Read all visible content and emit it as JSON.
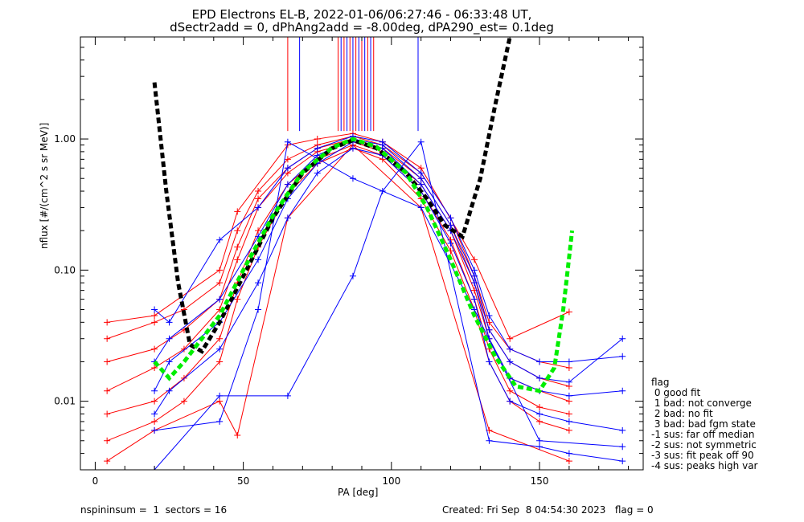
{
  "title_line1": "EPD Electrons EL-B, 2022-01-06/06:27:46 - 06:33:48 UT,",
  "title_line2": "dSectr2add = 0, dPhAng2add = -8.00deg, dPA290_est=   0.1deg",
  "footer_left": "nspininsum =  1  sectors = 16",
  "footer_right": "Created: Fri Sep  8 04:54:30 2023   flag = 0",
  "legend": {
    "title": "flag",
    "items": [
      " 0 good fit",
      " 1 bad: not converge",
      " 2 bad: no fit",
      " 3 bad: bad fgm state",
      "-1 sus: far off median",
      "-2 sus: not symmetric",
      "-3 sus: fit peak off 90",
      "-4 sus: peaks high var"
    ]
  },
  "colors": {
    "red": "#ff0000",
    "blue": "#0000ff",
    "black_fit": "#000000",
    "green_fit": "#00ee00"
  },
  "chart_data": {
    "type": "line",
    "xlabel": "PA [deg]",
    "ylabel": "nflux [#/(cm^2 s sr MeV)]",
    "xlim": [
      -5,
      185
    ],
    "ylim": [
      0.003,
      6
    ],
    "yscale": "log",
    "xticks": [
      0,
      50,
      100,
      150
    ],
    "yticks": [
      0.01,
      0.1,
      1.0
    ],
    "ytick_labels": [
      "0.01",
      "0.10",
      "1.00"
    ],
    "series": [
      {
        "color": "red",
        "x": [
          4,
          20,
          30,
          42,
          48,
          55,
          65,
          75,
          87,
          97,
          110,
          120,
          128,
          133,
          140,
          150,
          160
        ],
        "y": [
          0.012,
          0.018,
          0.025,
          0.05,
          0.12,
          0.3,
          0.55,
          0.8,
          0.95,
          0.8,
          0.45,
          0.2,
          0.07,
          0.03,
          0.015,
          0.012,
          0.01
        ]
      },
      {
        "color": "red",
        "x": [
          4,
          20,
          30,
          42,
          48,
          55,
          65,
          75,
          87,
          97,
          110,
          120,
          128,
          133,
          140,
          150,
          160
        ],
        "y": [
          0.02,
          0.025,
          0.035,
          0.06,
          0.15,
          0.35,
          0.6,
          0.85,
          1.0,
          0.85,
          0.5,
          0.22,
          0.08,
          0.035,
          0.02,
          0.015,
          0.013
        ]
      },
      {
        "color": "red",
        "x": [
          4,
          20,
          30,
          42,
          48,
          55,
          65,
          75,
          87,
          97,
          110,
          120,
          128,
          133,
          140,
          150,
          160
        ],
        "y": [
          0.008,
          0.01,
          0.015,
          0.03,
          0.08,
          0.2,
          0.45,
          0.7,
          0.9,
          0.75,
          0.4,
          0.17,
          0.06,
          0.025,
          0.012,
          0.009,
          0.008
        ]
      },
      {
        "color": "red",
        "x": [
          4,
          20,
          30,
          42,
          48,
          55,
          65,
          75,
          87,
          97,
          110,
          120,
          128,
          133,
          140,
          150,
          160
        ],
        "y": [
          0.03,
          0.04,
          0.05,
          0.08,
          0.2,
          0.4,
          0.7,
          0.9,
          1.05,
          0.9,
          0.55,
          0.25,
          0.09,
          0.04,
          0.025,
          0.02,
          0.018
        ]
      },
      {
        "color": "red",
        "x": [
          4,
          20,
          30,
          42,
          48,
          55,
          65,
          75,
          87,
          97,
          110,
          120,
          128,
          133,
          140,
          150,
          160
        ],
        "y": [
          0.005,
          0.007,
          0.01,
          0.02,
          0.06,
          0.15,
          0.38,
          0.65,
          0.85,
          0.7,
          0.35,
          0.14,
          0.05,
          0.02,
          0.01,
          0.007,
          0.006
        ]
      },
      {
        "color": "red",
        "x": [
          4,
          20,
          42,
          48,
          65,
          75,
          87,
          97,
          110,
          128,
          140,
          160
        ],
        "y": [
          0.04,
          0.045,
          0.1,
          0.28,
          0.9,
          1.0,
          1.1,
          0.95,
          0.6,
          0.12,
          0.03,
          0.048
        ]
      },
      {
        "color": "red",
        "x": [
          4,
          20,
          42,
          48,
          65,
          87,
          110,
          133,
          160
        ],
        "y": [
          0.0035,
          0.006,
          0.01,
          0.0055,
          0.25,
          0.9,
          0.3,
          0.006,
          0.0035
        ]
      },
      {
        "color": "blue",
        "x": [
          20,
          25,
          42,
          55,
          65,
          75,
          87,
          97,
          110,
          120,
          128,
          133,
          140,
          150,
          160,
          178
        ],
        "y": [
          0.012,
          0.02,
          0.04,
          0.12,
          0.35,
          0.65,
          0.95,
          0.85,
          0.45,
          0.2,
          0.08,
          0.03,
          0.015,
          0.012,
          0.011,
          0.012
        ]
      },
      {
        "color": "blue",
        "x": [
          20,
          25,
          42,
          55,
          65,
          75,
          87,
          97,
          110,
          120,
          128,
          133,
          140,
          150,
          160,
          178
        ],
        "y": [
          0.02,
          0.03,
          0.06,
          0.18,
          0.45,
          0.75,
          1.0,
          0.9,
          0.5,
          0.22,
          0.09,
          0.035,
          0.02,
          0.015,
          0.014,
          0.03
        ]
      },
      {
        "color": "blue",
        "x": [
          20,
          25,
          42,
          55,
          65,
          75,
          87,
          97,
          110,
          120,
          128,
          133,
          140,
          150,
          160,
          178
        ],
        "y": [
          0.008,
          0.012,
          0.025,
          0.08,
          0.25,
          0.55,
          0.85,
          0.75,
          0.4,
          0.16,
          0.06,
          0.02,
          0.01,
          0.008,
          0.007,
          0.006
        ]
      },
      {
        "color": "blue",
        "x": [
          20,
          25,
          42,
          55,
          65,
          75,
          87,
          97,
          110,
          120,
          128,
          133,
          140,
          150,
          160,
          178
        ],
        "y": [
          0.05,
          0.04,
          0.17,
          0.3,
          0.6,
          0.85,
          1.05,
          0.95,
          0.55,
          0.25,
          0.1,
          0.045,
          0.025,
          0.02,
          0.02,
          0.022
        ]
      },
      {
        "color": "blue",
        "x": [
          20,
          42,
          65,
          87,
          97,
          110,
          133,
          150,
          160,
          178
        ],
        "y": [
          0.003,
          0.011,
          0.011,
          0.09,
          0.4,
          0.95,
          0.005,
          0.0045,
          0.004,
          0.0035
        ]
      },
      {
        "color": "blue",
        "x": [
          20,
          42,
          55,
          65,
          87,
          110,
          128,
          150,
          178
        ],
        "y": [
          0.006,
          0.007,
          0.05,
          0.95,
          0.5,
          0.3,
          0.05,
          0.005,
          0.0045
        ]
      }
    ],
    "spikes": {
      "color_mix": [
        "red",
        "blue"
      ],
      "x": [
        65,
        69,
        82,
        83,
        84,
        85,
        86,
        87,
        88,
        89,
        90,
        91,
        92,
        93,
        94,
        109
      ],
      "y_top": 6,
      "y_bottom": 1.15
    },
    "fits": [
      {
        "color": "black_fit",
        "style": "dashed",
        "x": [
          20,
          24,
          28,
          32,
          36,
          42,
          50,
          60,
          70,
          80,
          87,
          95,
          105,
          112,
          118,
          124,
          130,
          135,
          140
        ],
        "y": [
          2.7,
          0.4,
          0.08,
          0.027,
          0.024,
          0.04,
          0.09,
          0.25,
          0.55,
          0.85,
          0.98,
          0.85,
          0.55,
          0.35,
          0.22,
          0.18,
          0.5,
          1.8,
          6
        ]
      },
      {
        "color": "green_fit",
        "style": "dashed",
        "x": [
          20,
          25,
          30,
          36,
          42,
          50,
          60,
          70,
          80,
          87,
          95,
          105,
          112,
          120,
          128,
          135,
          142,
          150,
          155,
          158,
          161
        ],
        "y": [
          0.02,
          0.015,
          0.02,
          0.03,
          0.045,
          0.1,
          0.26,
          0.56,
          0.86,
          1.0,
          0.87,
          0.55,
          0.3,
          0.12,
          0.045,
          0.022,
          0.013,
          0.012,
          0.018,
          0.05,
          0.2
        ]
      }
    ]
  }
}
